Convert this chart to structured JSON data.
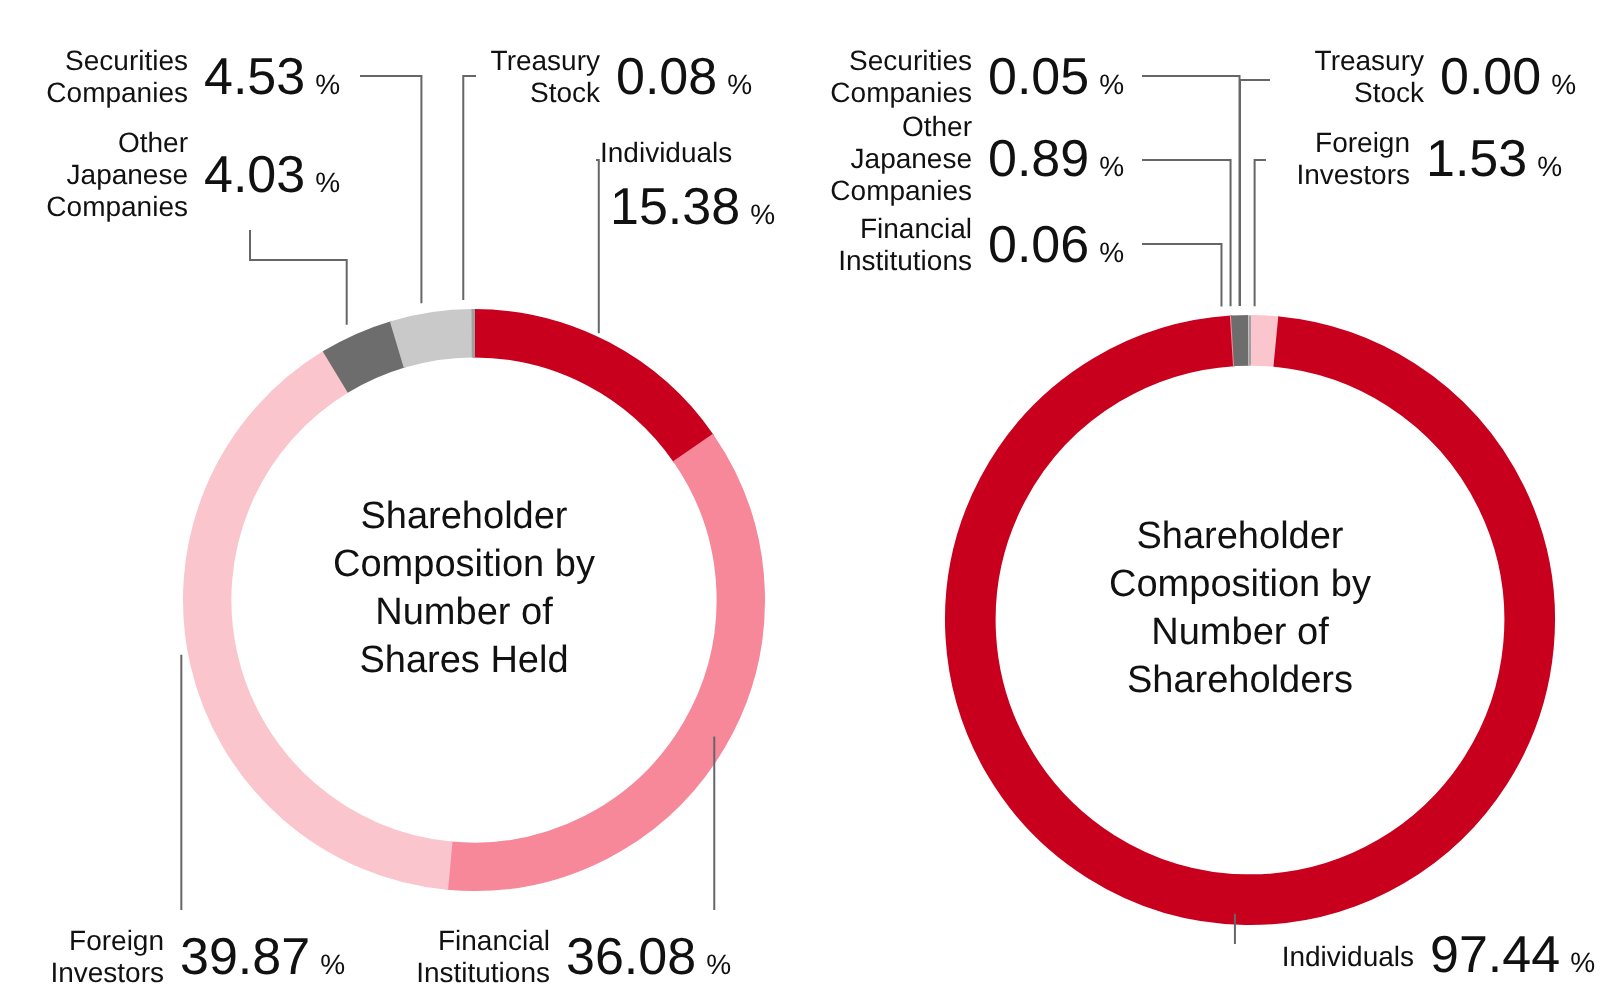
{
  "chart_data": [
    {
      "type": "donut",
      "title": "Shareholder Composition by Number of Shares Held",
      "categories": [
        "Individuals",
        "Financial Institutions",
        "Foreign Investors",
        "Other Japanese Companies",
        "Securities Companies",
        "Treasury Stock"
      ],
      "values": [
        15.38,
        36.08,
        39.87,
        4.03,
        4.53,
        0.08
      ],
      "colors": [
        "#c8001e",
        "#f7889a",
        "#fbc5cd",
        "#6d6d6d",
        "#c9c9c9",
        "#a0a0a0"
      ],
      "value_labels": [
        "15.38 %",
        "36.08 %",
        "39.87 %",
        "4.03 %",
        "4.53 %",
        "0.08 %"
      ]
    },
    {
      "type": "donut",
      "title": "Shareholder Composition by Number of Shareholders",
      "categories": [
        "Foreign Investors",
        "Individuals",
        "Financial Institutions",
        "Other Japanese Companies",
        "Securities Companies",
        "Treasury Stock"
      ],
      "values": [
        1.53,
        97.44,
        0.06,
        0.89,
        0.05,
        0.0
      ],
      "colors": [
        "#fbc5cd",
        "#c8001e",
        "#f7889a",
        "#6d6d6d",
        "#c9c9c9",
        "#a0a0a0"
      ],
      "value_labels": [
        "1.53 %",
        "97.44 %",
        "0.06 %",
        "0.89 %",
        "0.05 %",
        "0.00 %"
      ]
    }
  ]
}
